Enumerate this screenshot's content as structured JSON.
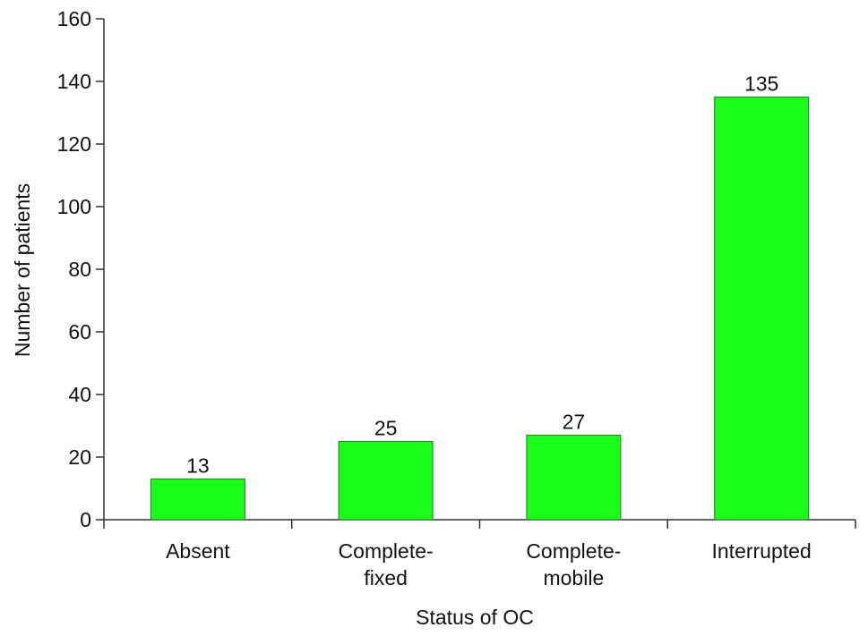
{
  "chart_data": {
    "type": "bar",
    "x_label": "Status of OC",
    "y_label": "Number of patients",
    "categories": [
      [
        "Absent"
      ],
      [
        "Complete-",
        "fixed"
      ],
      [
        "Complete-",
        "mobile"
      ],
      [
        "Interrupted"
      ]
    ],
    "values": [
      13,
      25,
      27,
      135
    ],
    "color": "#1aff1a",
    "ylim": [
      0,
      160
    ],
    "yticks": [
      0,
      20,
      40,
      60,
      80,
      100,
      120,
      140,
      160
    ],
    "grid": false
  }
}
